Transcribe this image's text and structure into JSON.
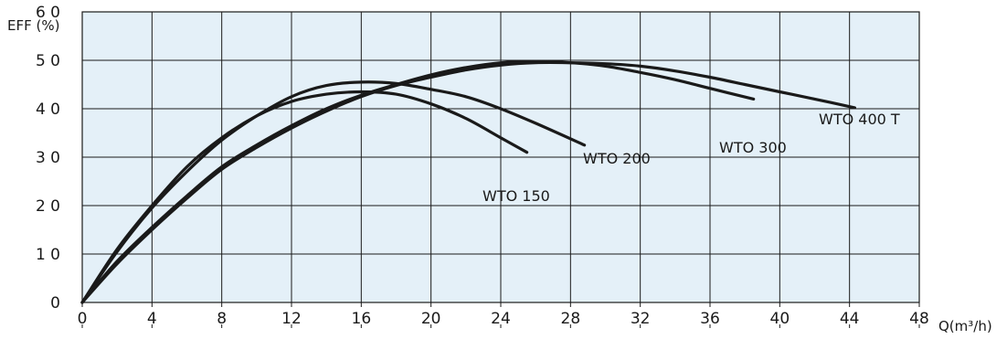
{
  "chart_data": {
    "type": "line",
    "xlabel": "Q(m³/h)",
    "ylabel": "EFF (%)",
    "xlim": [
      0,
      48
    ],
    "ylim": [
      0,
      60
    ],
    "x_ticks": [
      "0",
      "4",
      "8",
      "12",
      "16",
      "20",
      "24",
      "28",
      "32",
      "36",
      "40",
      "44",
      "48"
    ],
    "y_ticks": [
      "0",
      "1 0",
      "2 0",
      "3 0",
      "4 0",
      "5 0",
      "6 0"
    ],
    "grid": true,
    "plot_background": "#e4f0f8",
    "line_color": "#1a1a1a",
    "series": [
      {
        "name": "WTO 150",
        "x": [
          0,
          2,
          4,
          6,
          8,
          10,
          12,
          14,
          16,
          18,
          20,
          22,
          24,
          25.5
        ],
        "y": [
          0,
          11,
          20,
          28,
          34,
          38.5,
          41.5,
          43,
          43.5,
          43,
          41,
          38,
          34,
          31
        ]
      },
      {
        "name": "WTO 200",
        "x": [
          0,
          2,
          4,
          6,
          8,
          10,
          12,
          14,
          16,
          18,
          20,
          22,
          24,
          26,
          28.8
        ],
        "y": [
          0,
          10.5,
          19.5,
          27,
          33.5,
          38.5,
          42.5,
          44.8,
          45.5,
          45.2,
          44,
          42.5,
          40,
          37,
          32.5
        ]
      },
      {
        "name": "WTO 300",
        "x": [
          0,
          2,
          4,
          6,
          8,
          10,
          12,
          14,
          16,
          18,
          20,
          22,
          24,
          26,
          28,
          30,
          32,
          34,
          36,
          38.5
        ],
        "y": [
          0,
          8.5,
          15.5,
          22,
          28,
          32.5,
          36.5,
          40,
          42.8,
          45,
          47,
          48.5,
          49.5,
          49.8,
          49.5,
          48.8,
          47.5,
          46,
          44.2,
          42
        ]
      },
      {
        "name": "WTO 400 T",
        "x": [
          0,
          2,
          4,
          6,
          8,
          10,
          12,
          14,
          16,
          18,
          20,
          22,
          24,
          26,
          28,
          30,
          32,
          34,
          36,
          38,
          40,
          42,
          44.3
        ],
        "y": [
          0,
          8,
          15,
          21.5,
          27.5,
          32,
          36,
          39.5,
          42.5,
          44.8,
          46.5,
          48,
          49,
          49.5,
          49.5,
          49.3,
          48.8,
          47.8,
          46.5,
          45,
          43.5,
          42,
          40.2
        ]
      }
    ],
    "series_labels": [
      "WTO 150",
      "WTO 200",
      "WTO 300",
      "WTO 400 T"
    ]
  }
}
